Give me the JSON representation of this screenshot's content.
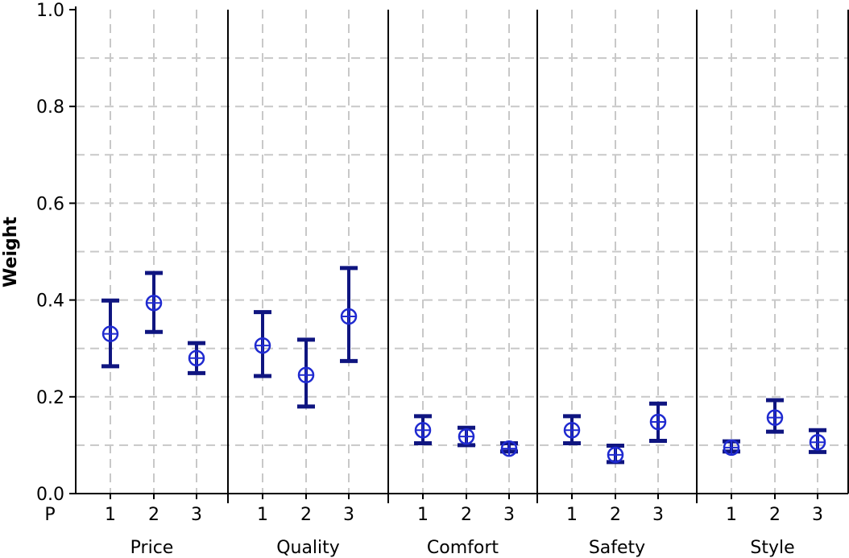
{
  "chart_data": {
    "type": "scatter",
    "title": "",
    "ylabel": "Weight",
    "xlabel": "",
    "ylim": [
      0,
      1
    ],
    "yticks": [
      "0.0",
      "0.2",
      "0.4",
      "0.6",
      "0.8",
      "1.0"
    ],
    "grid": true,
    "row_label": "P",
    "groups": [
      {
        "name": "Price",
        "points": [
          {
            "p": "1",
            "mean": 0.33,
            "low": 0.263,
            "high": 0.399
          },
          {
            "p": "2",
            "mean": 0.394,
            "low": 0.334,
            "high": 0.456
          },
          {
            "p": "3",
            "mean": 0.28,
            "low": 0.249,
            "high": 0.311
          }
        ]
      },
      {
        "name": "Quality",
        "points": [
          {
            "p": "1",
            "mean": 0.306,
            "low": 0.243,
            "high": 0.375
          },
          {
            "p": "2",
            "mean": 0.245,
            "low": 0.18,
            "high": 0.318
          },
          {
            "p": "3",
            "mean": 0.366,
            "low": 0.274,
            "high": 0.466
          }
        ]
      },
      {
        "name": "Comfort",
        "points": [
          {
            "p": "1",
            "mean": 0.131,
            "low": 0.104,
            "high": 0.16
          },
          {
            "p": "2",
            "mean": 0.118,
            "low": 0.1,
            "high": 0.136
          },
          {
            "p": "3",
            "mean": 0.093,
            "low": 0.087,
            "high": 0.104
          }
        ]
      },
      {
        "name": "Safety",
        "points": [
          {
            "p": "1",
            "mean": 0.131,
            "low": 0.104,
            "high": 0.16
          },
          {
            "p": "2",
            "mean": 0.08,
            "low": 0.065,
            "high": 0.099
          },
          {
            "p": "3",
            "mean": 0.148,
            "low": 0.109,
            "high": 0.186
          }
        ]
      },
      {
        "name": "Style",
        "points": [
          {
            "p": "1",
            "mean": 0.095,
            "low": 0.087,
            "high": 0.108
          },
          {
            "p": "2",
            "mean": 0.157,
            "low": 0.128,
            "high": 0.193
          },
          {
            "p": "3",
            "mean": 0.106,
            "low": 0.086,
            "high": 0.131
          }
        ]
      }
    ],
    "colors": {
      "errorbar": "#0f1580",
      "marker": "#1f2ad0",
      "grid": "#c8c8c8",
      "frame": "#000000"
    }
  }
}
